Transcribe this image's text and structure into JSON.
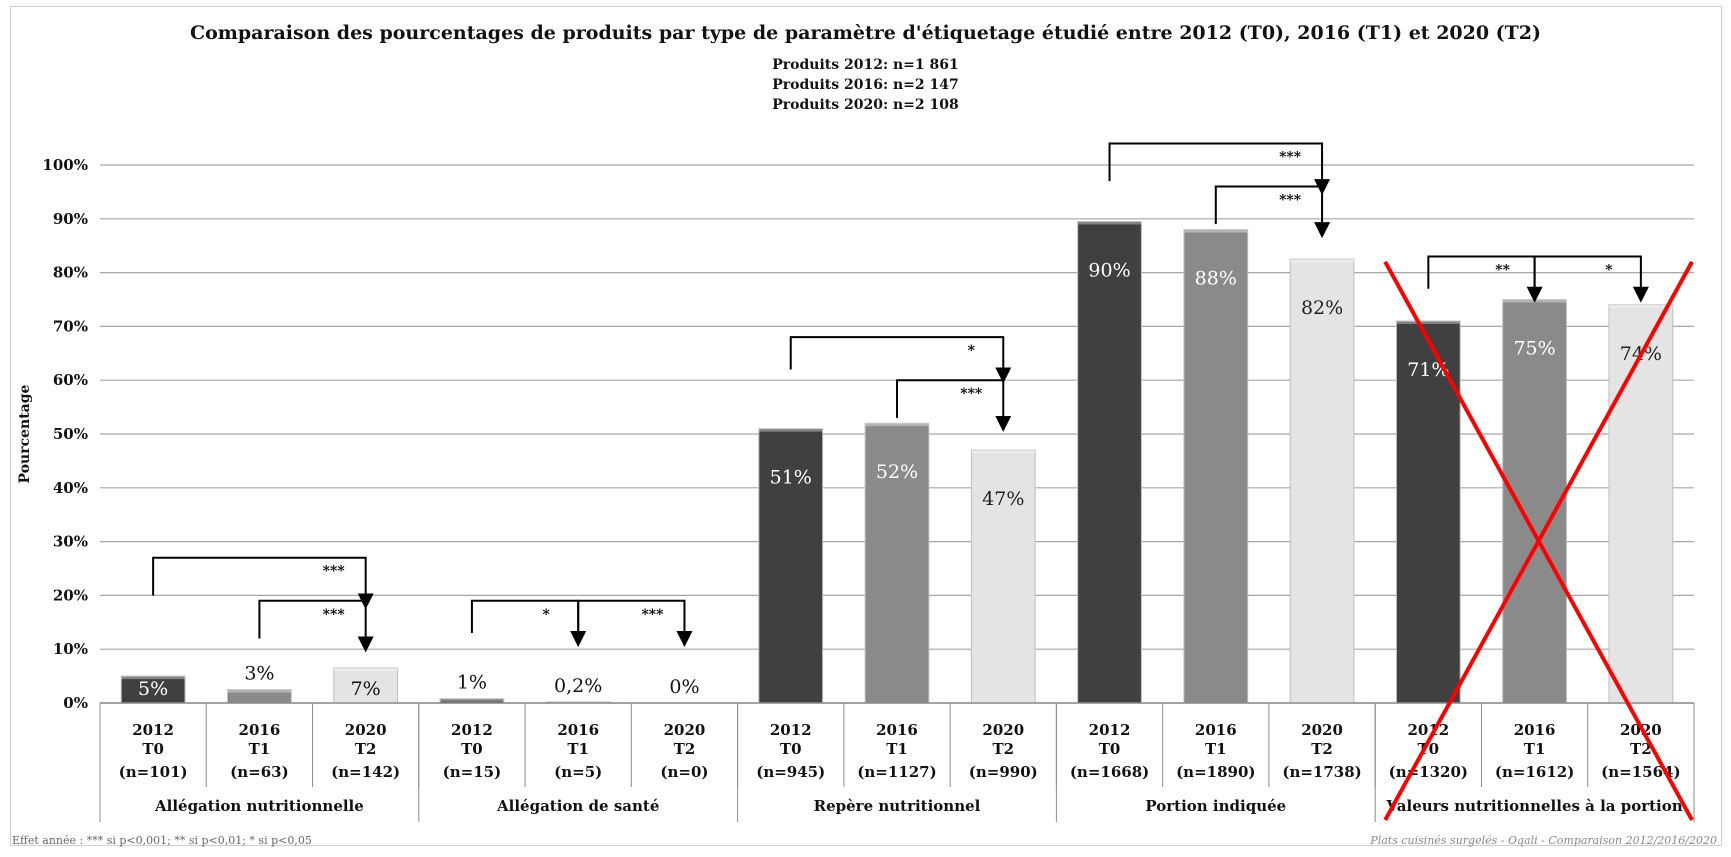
{
  "chart_data": {
    "type": "bar",
    "title": "Comparaison des pourcentages de produits par type de paramètre d'étiquetage étudié entre 2012 (T0), 2016 (T1) et 2020 (T2)",
    "subtitle_lines": [
      "Produits 2012: n=1 861",
      "Produits 2016: n=2 147",
      "Produits 2020: n=2 108"
    ],
    "ylabel": "Pourcentage",
    "ylim": [
      0,
      100
    ],
    "yticks": [
      0,
      10,
      20,
      30,
      40,
      50,
      60,
      70,
      80,
      90,
      100
    ],
    "ytick_labels": [
      "0%",
      "10%",
      "20%",
      "30%",
      "40%",
      "50%",
      "60%",
      "70%",
      "80%",
      "90%",
      "100%"
    ],
    "grid": true,
    "groups": [
      {
        "name": "Allégation nutritionnelle",
        "bars": [
          {
            "year": "2012",
            "t": "T0",
            "n": "(n=101)",
            "value": 5,
            "label": "5%"
          },
          {
            "year": "2016",
            "t": "T1",
            "n": "(n=63)",
            "value": 2.5,
            "label": "3%"
          },
          {
            "year": "2020",
            "t": "T2",
            "n": "(n=142)",
            "value": 6.5,
            "label": "7%"
          }
        ]
      },
      {
        "name": "Allégation de santé",
        "bars": [
          {
            "year": "2012",
            "t": "T0",
            "n": "(n=15)",
            "value": 0.8,
            "label": "1%"
          },
          {
            "year": "2016",
            "t": "T1",
            "n": "(n=5)",
            "value": 0.2,
            "label": "0,2%"
          },
          {
            "year": "2020",
            "t": "T2",
            "n": "(n=0)",
            "value": 0,
            "label": "0%"
          }
        ]
      },
      {
        "name": "Repère nutritionnel",
        "bars": [
          {
            "year": "2012",
            "t": "T0",
            "n": "(n=945)",
            "value": 51,
            "label": "51%"
          },
          {
            "year": "2016",
            "t": "T1",
            "n": "(n=1127)",
            "value": 52,
            "label": "52%"
          },
          {
            "year": "2020",
            "t": "T2",
            "n": "(n=990)",
            "value": 47,
            "label": "47%"
          }
        ]
      },
      {
        "name": "Portion indiquée",
        "bars": [
          {
            "year": "2012",
            "t": "T0",
            "n": "(n=1668)",
            "value": 89.5,
            "label": "90%"
          },
          {
            "year": "2016",
            "t": "T1",
            "n": "(n=1890)",
            "value": 88,
            "label": "88%"
          },
          {
            "year": "2020",
            "t": "T2",
            "n": "(n=1738)",
            "value": 82.5,
            "label": "82%"
          }
        ]
      },
      {
        "name": "Valeurs nutritionnelles à la portion",
        "bars": [
          {
            "year": "2012",
            "t": "T0",
            "n": "(n=1320)",
            "value": 71,
            "label": "71%"
          },
          {
            "year": "2016",
            "t": "T1",
            "n": "(n=1612)",
            "value": 75,
            "label": "75%"
          },
          {
            "year": "2020",
            "t": "T2",
            "n": "(n=1564)",
            "value": 74,
            "label": "74%"
          }
        ],
        "crossed_out": true
      }
    ],
    "significance": [
      {
        "from": 0,
        "to": 2,
        "base": 20,
        "top": 27,
        "stars": "***"
      },
      {
        "from": 1,
        "to": 2,
        "base": 12,
        "top": 19,
        "stars": "***"
      },
      {
        "from": 3,
        "to": 4,
        "base": 13,
        "top": 19,
        "stars": "*"
      },
      {
        "from": 4,
        "to": 5,
        "base": 13,
        "top": 19,
        "stars": "***"
      },
      {
        "from": 6,
        "to": 8,
        "base": 62,
        "top": 68,
        "stars": "*"
      },
      {
        "from": 7,
        "to": 8,
        "base": 53,
        "top": 60,
        "stars": "***"
      },
      {
        "from": 9,
        "to": 11,
        "base": 97,
        "top": 104,
        "stars": "***"
      },
      {
        "from": 10,
        "to": 11,
        "base": 89,
        "top": 96,
        "stars": "***"
      },
      {
        "from": 12,
        "to": 13,
        "base": 77,
        "top": 83,
        "stars": "**"
      },
      {
        "from": 13,
        "to": 14,
        "base": 77,
        "top": 83,
        "stars": "*"
      }
    ],
    "bar_colors": {
      "T0": "#404040",
      "T1": "#8a8a8a",
      "T2": "#e4e4e4"
    },
    "cross_color": "#ff0000",
    "legend": "none"
  },
  "footnote": "Effet année : *** si p<0,001; ** si p<0,01; * si p<0,05",
  "source": "Plats cuisinés surgelés - Oqali - Comparaison 2012/2016/2020"
}
